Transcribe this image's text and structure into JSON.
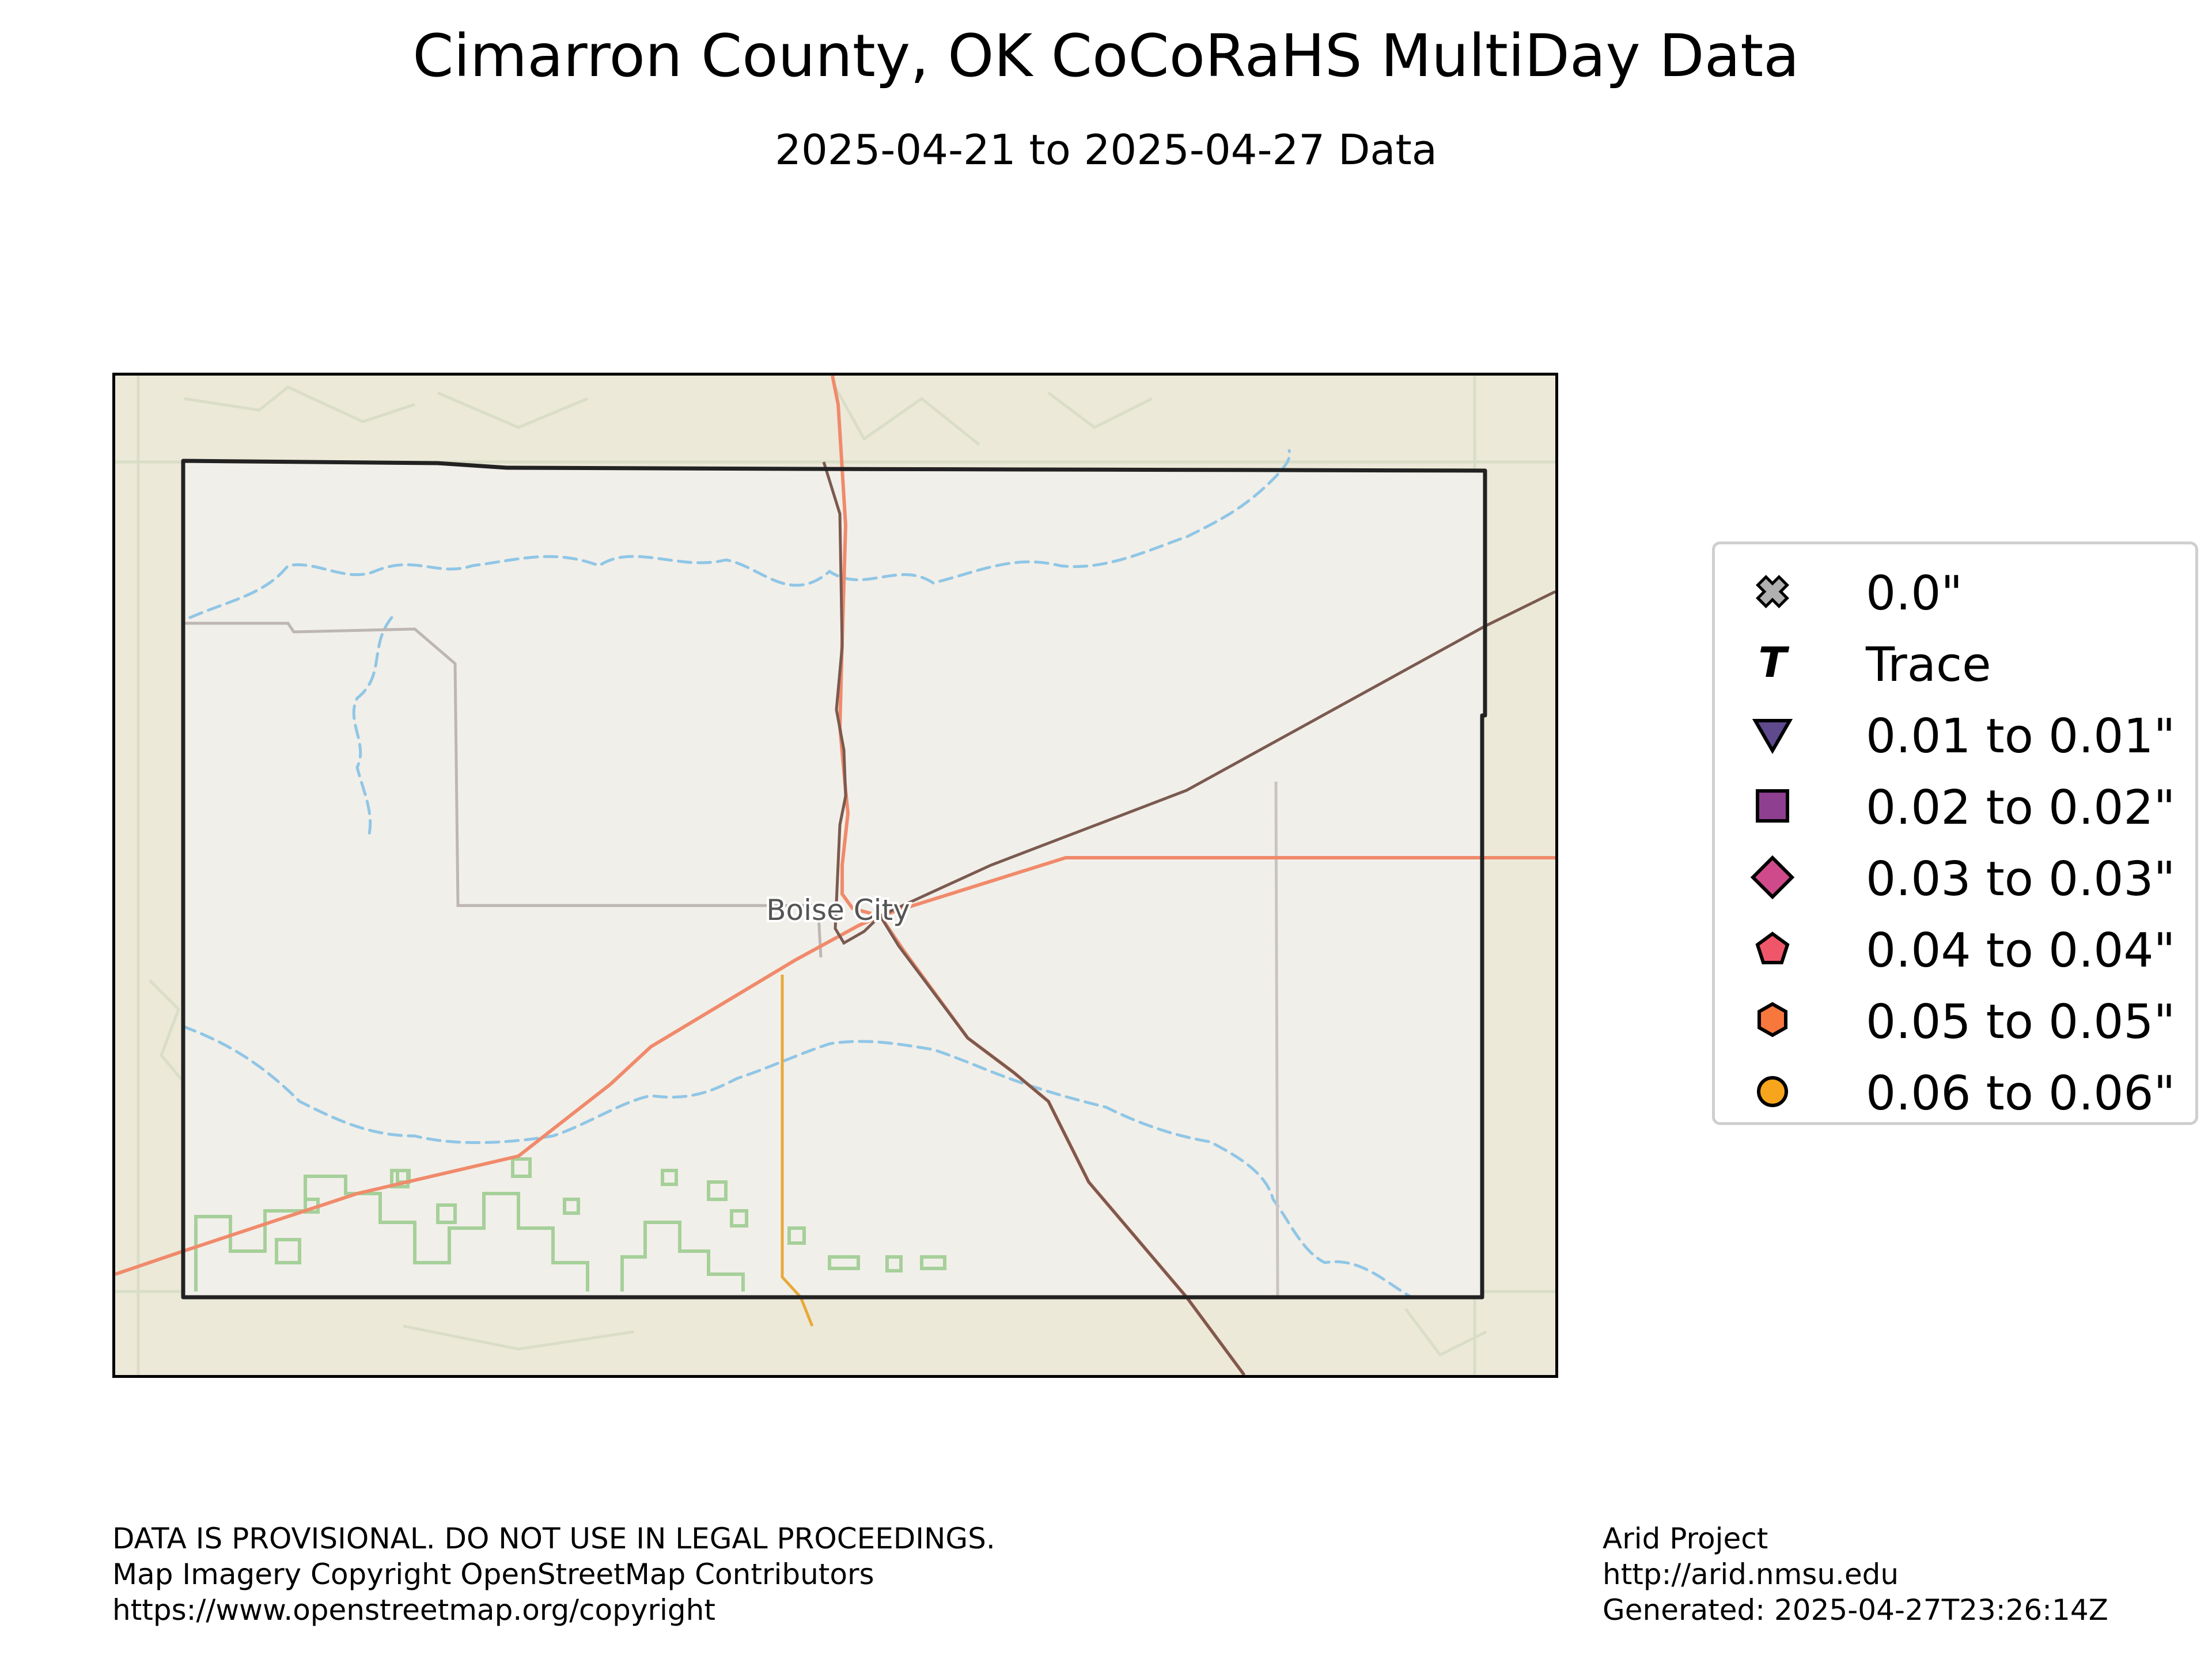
{
  "title": "Cimarron County, OK CoCoRaHS MultiDay Data",
  "subtitle": "2025-04-21 to 2025-04-27 Data",
  "map": {
    "place_label": "Boise City",
    "colors": {
      "land": "#ece9d9",
      "county_fill": "#f1efe9",
      "water": "#8fc6e6",
      "major_road": "#f08a6b",
      "minor_road": "#e8a93a",
      "railroad": "#7a5a50",
      "boundary": "#222222",
      "parkland": "#a6d09a"
    }
  },
  "legend": {
    "items": [
      {
        "icon": "x-marker-icon",
        "label": "0.0\"",
        "color": "#b0b0b0"
      },
      {
        "icon": "trace-t-icon",
        "label": "Trace",
        "color": "#000000"
      },
      {
        "icon": "triangle-down-icon",
        "label": "0.01 to 0.01\"",
        "color": "#5e4a8c"
      },
      {
        "icon": "square-icon",
        "label": "0.02 to 0.02\"",
        "color": "#8e3f8f"
      },
      {
        "icon": "diamond-icon",
        "label": "0.03 to 0.03\"",
        "color": "#cf4a8a"
      },
      {
        "icon": "pentagon-icon",
        "label": "0.04 to 0.04\"",
        "color": "#f0566a"
      },
      {
        "icon": "hexagon-icon",
        "label": "0.05 to 0.05\"",
        "color": "#f8773d"
      },
      {
        "icon": "circle-icon",
        "label": "0.06 to 0.06\"",
        "color": "#f7a51c"
      }
    ]
  },
  "footer_left": {
    "line1": "DATA IS PROVISIONAL. DO NOT USE IN LEGAL PROCEEDINGS.",
    "line2": "Map Imagery Copyright OpenStreetMap Contributors",
    "line3": "https://www.openstreetmap.org/copyright"
  },
  "footer_right": {
    "line1": "Arid Project",
    "line2": "http://arid.nmsu.edu",
    "line3": "Generated: 2025-04-27T23:26:14Z"
  }
}
